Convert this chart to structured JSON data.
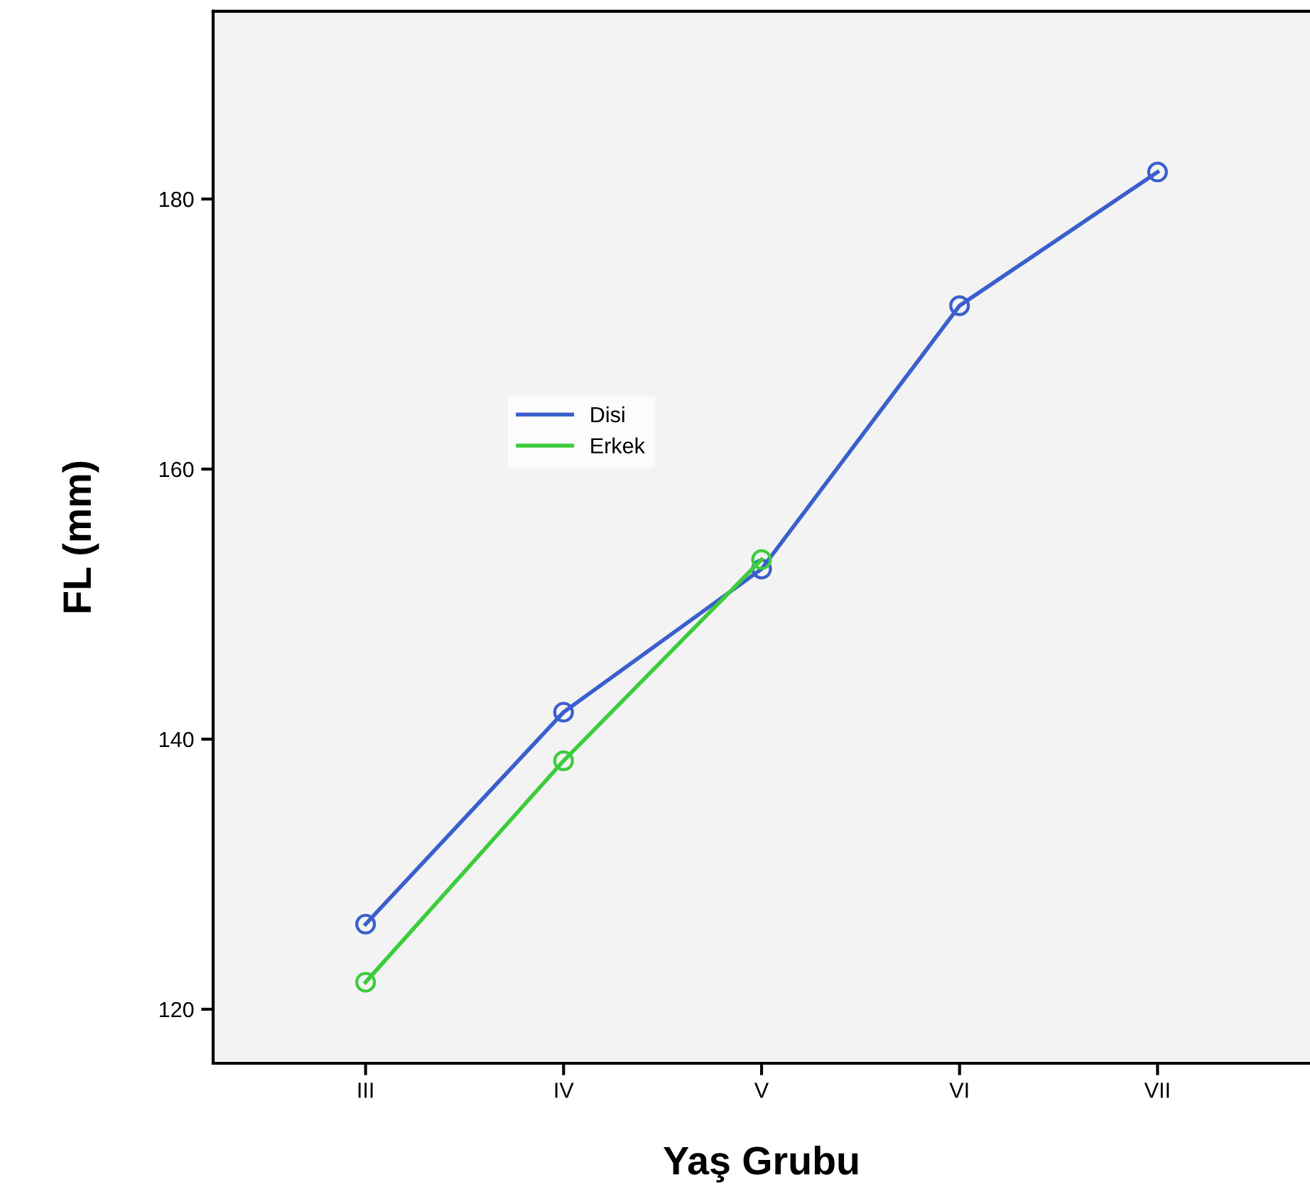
{
  "chart_data": {
    "type": "line",
    "xlabel": "Yaş Grubu",
    "ylabel": "FL (mm)",
    "categories": [
      "III",
      "IV",
      "V",
      "VI",
      "VII"
    ],
    "series": [
      {
        "name": "Disi",
        "color": "#3a5fcd",
        "values": [
          126.3,
          142.0,
          152.6,
          172.1,
          182.0
        ]
      },
      {
        "name": "Erkek",
        "color": "#3ccc3c",
        "values": [
          122.0,
          138.4,
          153.3,
          null,
          null
        ]
      }
    ],
    "ylim": [
      116,
      193.9
    ],
    "yticks": [
      120,
      140,
      160,
      180
    ],
    "marker": "circle",
    "line_style": "solid",
    "grid": false,
    "legend": "center left"
  }
}
